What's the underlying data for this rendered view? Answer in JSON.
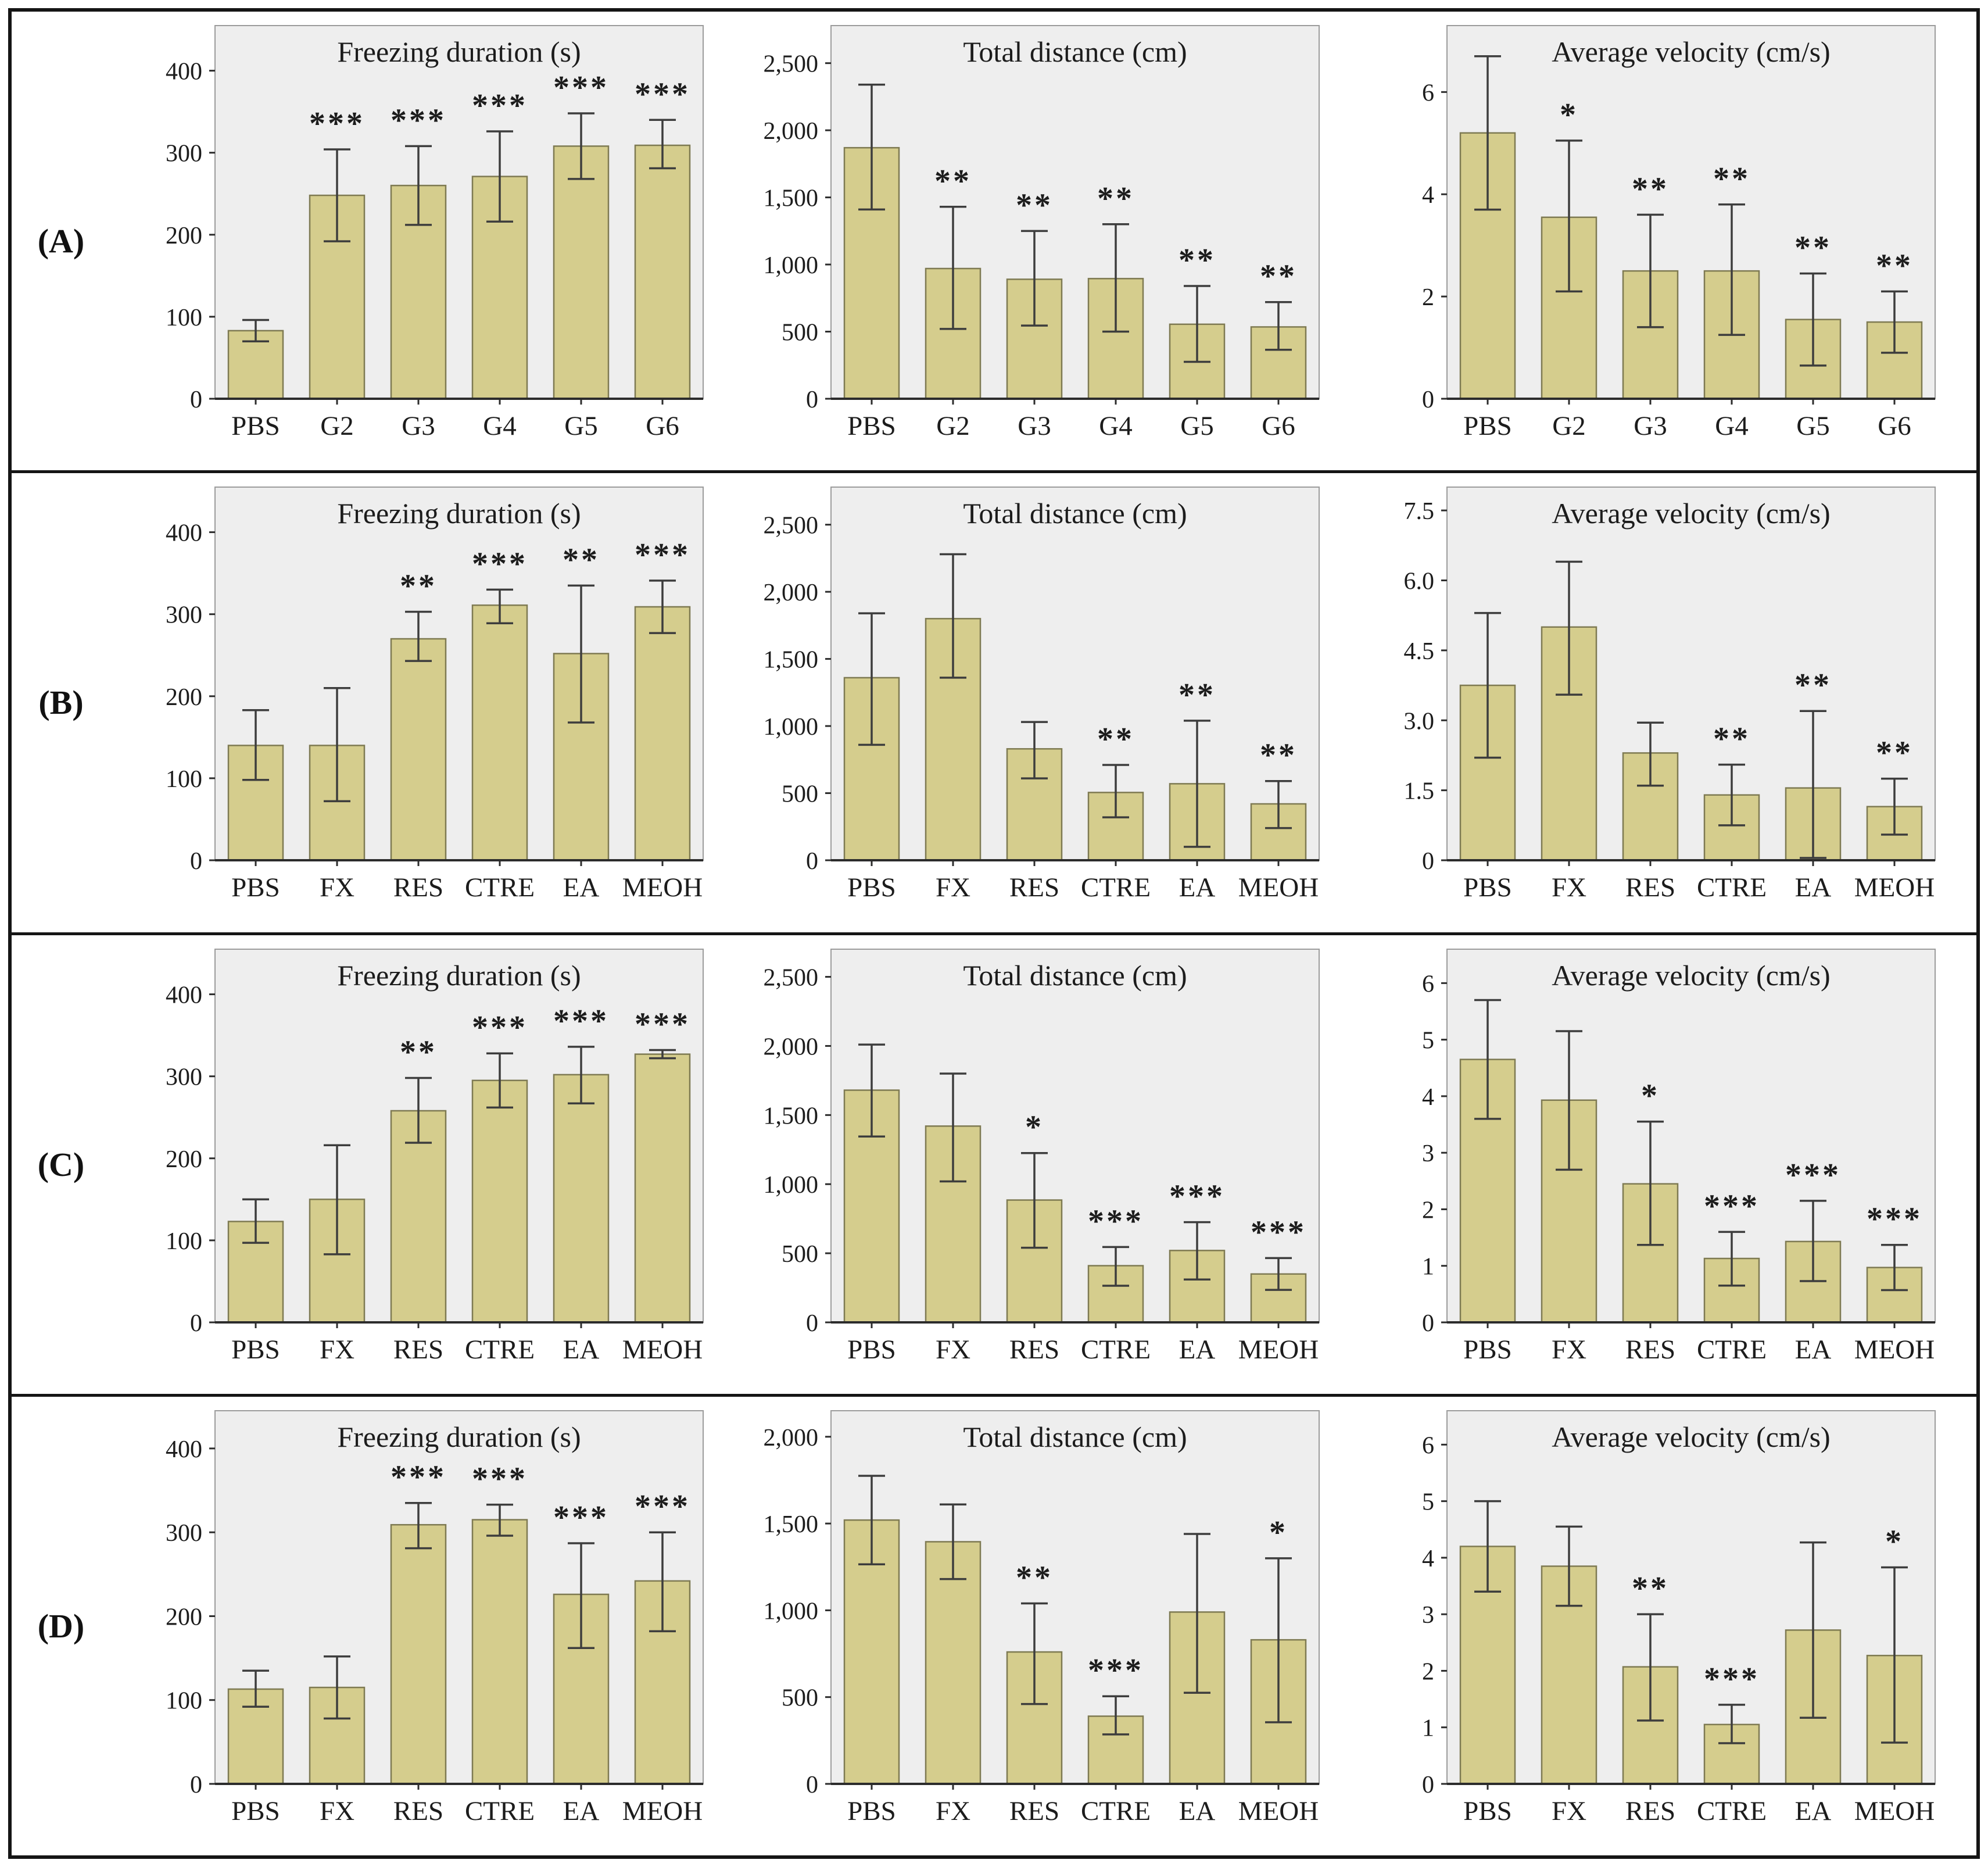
{
  "styles": {
    "bar_fill": "#d5cd8d",
    "bar_stroke": "#7e7a52",
    "plot_bg": "#eeeeee",
    "plot_border": "#9c9c9c",
    "axis_color": "#2c2c2c",
    "error_color": "#3d3d3d",
    "text_color": "#1c1c1c",
    "frame_color": "#151515"
  },
  "chart_data": {
    "type": "bar",
    "legend": "none",
    "grid": "off",
    "error_bars": true,
    "significance_marks": [
      "*",
      "**",
      "***"
    ],
    "panels": [
      {
        "label": "(A)",
        "charts": [
          {
            "title": "Freezing duration (s)",
            "ylabel": "",
            "ylim": [
              0,
              455
            ],
            "yticks": [
              {
                "v": 0,
                "t": "0"
              },
              {
                "v": 100,
                "t": "100"
              },
              {
                "v": 200,
                "t": "200"
              },
              {
                "v": 300,
                "t": "300"
              },
              {
                "v": 400,
                "t": "400"
              }
            ],
            "categories": [
              "PBS",
              "G2",
              "G3",
              "G4",
              "G5",
              "G6"
            ],
            "values": [
              83,
              248,
              260,
              271,
              308,
              309
            ],
            "err_low": [
              70,
              192,
              212,
              216,
              268,
              281
            ],
            "err_high": [
              96,
              304,
              308,
              326,
              348,
              340
            ],
            "sig": [
              "",
              "***",
              "***",
              "***",
              "***",
              "***"
            ]
          },
          {
            "title": "Total distance (cm)",
            "ylabel": "",
            "ylim": [
              0,
              2780
            ],
            "yticks": [
              {
                "v": 0,
                "t": "0"
              },
              {
                "v": 500,
                "t": "500"
              },
              {
                "v": 1000,
                "t": "1,000"
              },
              {
                "v": 1500,
                "t": "1,500"
              },
              {
                "v": 2000,
                "t": "2,000"
              },
              {
                "v": 2500,
                "t": "2,500"
              }
            ],
            "categories": [
              "PBS",
              "G2",
              "G3",
              "G4",
              "G5",
              "G6"
            ],
            "values": [
              1870,
              970,
              890,
              895,
              555,
              535
            ],
            "err_low": [
              1410,
              520,
              545,
              500,
              275,
              365
            ],
            "err_high": [
              2340,
              1430,
              1250,
              1300,
              840,
              720
            ],
            "sig": [
              "",
              "**",
              "**",
              "**",
              "**",
              "**"
            ]
          },
          {
            "title": "Average velocity (cm/s)",
            "ylabel": "",
            "ylim": [
              0,
              7.3
            ],
            "yticks": [
              {
                "v": 0,
                "t": "0"
              },
              {
                "v": 2,
                "t": "2"
              },
              {
                "v": 4,
                "t": "4"
              },
              {
                "v": 6,
                "t": "6"
              }
            ],
            "categories": [
              "PBS",
              "G2",
              "G3",
              "G4",
              "G5",
              "G6"
            ],
            "values": [
              5.2,
              3.55,
              2.5,
              2.5,
              1.55,
              1.5
            ],
            "err_low": [
              3.7,
              2.1,
              1.4,
              1.25,
              0.65,
              0.9
            ],
            "err_high": [
              6.7,
              5.05,
              3.6,
              3.8,
              2.45,
              2.1
            ],
            "sig": [
              "",
              "*",
              "**",
              "**",
              "**",
              "**"
            ]
          }
        ]
      },
      {
        "label": "(B)",
        "charts": [
          {
            "title": "Freezing duration (s)",
            "ylabel": "",
            "ylim": [
              0,
              455
            ],
            "yticks": [
              {
                "v": 0,
                "t": "0"
              },
              {
                "v": 100,
                "t": "100"
              },
              {
                "v": 200,
                "t": "200"
              },
              {
                "v": 300,
                "t": "300"
              },
              {
                "v": 400,
                "t": "400"
              }
            ],
            "categories": [
              "PBS",
              "FX",
              "RES",
              "CTRE",
              "EA",
              "MEOH"
            ],
            "values": [
              140,
              140,
              270,
              311,
              252,
              309
            ],
            "err_low": [
              98,
              72,
              243,
              289,
              168,
              277
            ],
            "err_high": [
              183,
              210,
              303,
              330,
              335,
              341
            ],
            "sig": [
              "",
              "",
              "**",
              "***",
              "**",
              "***"
            ]
          },
          {
            "title": "Total distance (cm)",
            "ylabel": "",
            "ylim": [
              0,
              2780
            ],
            "yticks": [
              {
                "v": 0,
                "t": "0"
              },
              {
                "v": 500,
                "t": "500"
              },
              {
                "v": 1000,
                "t": "1,000"
              },
              {
                "v": 1500,
                "t": "1,500"
              },
              {
                "v": 2000,
                "t": "2,000"
              },
              {
                "v": 2500,
                "t": "2,500"
              }
            ],
            "categories": [
              "PBS",
              "FX",
              "RES",
              "CTRE",
              "EA",
              "MEOH"
            ],
            "values": [
              1360,
              1800,
              830,
              505,
              570,
              420
            ],
            "err_low": [
              860,
              1360,
              610,
              320,
              100,
              240
            ],
            "err_high": [
              1840,
              2280,
              1030,
              710,
              1040,
              590
            ],
            "sig": [
              "",
              "",
              "",
              "**",
              "**",
              "**"
            ]
          },
          {
            "title": "Average velocity (cm/s)",
            "ylabel": "",
            "ylim": [
              0,
              8.0
            ],
            "yticks": [
              {
                "v": 0,
                "t": "0"
              },
              {
                "v": 1.5,
                "t": "1.5"
              },
              {
                "v": 3,
                "t": "3.0"
              },
              {
                "v": 4.5,
                "t": "4.5"
              },
              {
                "v": 6,
                "t": "6.0"
              },
              {
                "v": 7.5,
                "t": "7.5"
              }
            ],
            "categories": [
              "PBS",
              "FX",
              "RES",
              "CTRE",
              "EA",
              "MEOH"
            ],
            "values": [
              3.75,
              5.0,
              2.3,
              1.4,
              1.55,
              1.15
            ],
            "err_low": [
              2.2,
              3.55,
              1.6,
              0.75,
              0.05,
              0.55
            ],
            "err_high": [
              5.3,
              6.4,
              2.95,
              2.05,
              3.2,
              1.75
            ],
            "sig": [
              "",
              "",
              "",
              "**",
              "**",
              "**"
            ]
          }
        ]
      },
      {
        "label": "(C)",
        "charts": [
          {
            "title": "Freezing duration (s)",
            "ylabel": "",
            "ylim": [
              0,
              455
            ],
            "yticks": [
              {
                "v": 0,
                "t": "0"
              },
              {
                "v": 100,
                "t": "100"
              },
              {
                "v": 200,
                "t": "200"
              },
              {
                "v": 300,
                "t": "300"
              },
              {
                "v": 400,
                "t": "400"
              }
            ],
            "categories": [
              "PBS",
              "FX",
              "RES",
              "CTRE",
              "EA",
              "MEOH"
            ],
            "values": [
              123,
              150,
              258,
              295,
              302,
              327
            ],
            "err_low": [
              97,
              83,
              219,
              262,
              267,
              322
            ],
            "err_high": [
              150,
              216,
              298,
              328,
              336,
              332
            ],
            "sig": [
              "",
              "",
              "**",
              "***",
              "***",
              "***"
            ]
          },
          {
            "title": "Total distance (cm)",
            "ylabel": "",
            "ylim": [
              0,
              2700
            ],
            "yticks": [
              {
                "v": 0,
                "t": "0"
              },
              {
                "v": 500,
                "t": "500"
              },
              {
                "v": 1000,
                "t": "1,000"
              },
              {
                "v": 1500,
                "t": "1,500"
              },
              {
                "v": 2000,
                "t": "2,000"
              },
              {
                "v": 2500,
                "t": "2,500"
              }
            ],
            "categories": [
              "PBS",
              "FX",
              "RES",
              "CTRE",
              "EA",
              "MEOH"
            ],
            "values": [
              1680,
              1420,
              885,
              410,
              520,
              350
            ],
            "err_low": [
              1345,
              1020,
              540,
              265,
              310,
              235
            ],
            "err_high": [
              2010,
              1800,
              1225,
              545,
              725,
              465
            ],
            "sig": [
              "",
              "",
              "*",
              "***",
              "***",
              "***"
            ]
          },
          {
            "title": "Average velocity (cm/s)",
            "ylabel": "",
            "ylim": [
              0,
              6.6
            ],
            "yticks": [
              {
                "v": 0,
                "t": "0"
              },
              {
                "v": 1,
                "t": "1"
              },
              {
                "v": 2,
                "t": "2"
              },
              {
                "v": 3,
                "t": "3"
              },
              {
                "v": 4,
                "t": "4"
              },
              {
                "v": 5,
                "t": "5"
              },
              {
                "v": 6,
                "t": "6"
              }
            ],
            "categories": [
              "PBS",
              "FX",
              "RES",
              "CTRE",
              "EA",
              "MEOH"
            ],
            "values": [
              4.65,
              3.93,
              2.45,
              1.13,
              1.43,
              0.97
            ],
            "err_low": [
              3.6,
              2.7,
              1.37,
              0.65,
              0.73,
              0.57
            ],
            "err_high": [
              5.7,
              5.15,
              3.55,
              1.6,
              2.15,
              1.37
            ],
            "sig": [
              "",
              "",
              "*",
              "***",
              "***",
              "***"
            ]
          }
        ]
      },
      {
        "label": "(D)",
        "charts": [
          {
            "title": "Freezing duration (s)",
            "ylabel": "",
            "ylim": [
              0,
              445
            ],
            "yticks": [
              {
                "v": 0,
                "t": "0"
              },
              {
                "v": 100,
                "t": "100"
              },
              {
                "v": 200,
                "t": "200"
              },
              {
                "v": 300,
                "t": "300"
              },
              {
                "v": 400,
                "t": "400"
              }
            ],
            "categories": [
              "PBS",
              "FX",
              "RES",
              "CTRE",
              "EA",
              "MEOH"
            ],
            "values": [
              113,
              115,
              309,
              315,
              226,
              242
            ],
            "err_low": [
              92,
              78,
              281,
              296,
              162,
              182
            ],
            "err_high": [
              135,
              152,
              335,
              333,
              287,
              300
            ],
            "sig": [
              "",
              "",
              "***",
              "***",
              "***",
              "***"
            ]
          },
          {
            "title": "Total distance (cm)",
            "ylabel": "",
            "ylim": [
              0,
              2150
            ],
            "yticks": [
              {
                "v": 0,
                "t": "0"
              },
              {
                "v": 500,
                "t": "500"
              },
              {
                "v": 1000,
                "t": "1,000"
              },
              {
                "v": 1500,
                "t": "1,500"
              },
              {
                "v": 2000,
                "t": "2,000"
              }
            ],
            "categories": [
              "PBS",
              "FX",
              "RES",
              "CTRE",
              "EA",
              "MEOH"
            ],
            "values": [
              1520,
              1395,
              760,
              390,
              990,
              830
            ],
            "err_low": [
              1265,
              1180,
              460,
              285,
              525,
              355
            ],
            "err_high": [
              1775,
              1610,
              1040,
              505,
              1440,
              1300
            ],
            "sig": [
              "",
              "",
              "**",
              "***",
              "",
              "*"
            ]
          },
          {
            "title": "Average velocity (cm/s)",
            "ylabel": "",
            "ylim": [
              0,
              6.6
            ],
            "yticks": [
              {
                "v": 0,
                "t": "0"
              },
              {
                "v": 1,
                "t": "1"
              },
              {
                "v": 2,
                "t": "2"
              },
              {
                "v": 3,
                "t": "3"
              },
              {
                "v": 4,
                "t": "4"
              },
              {
                "v": 5,
                "t": "5"
              },
              {
                "v": 6,
                "t": "6"
              }
            ],
            "categories": [
              "PBS",
              "FX",
              "RES",
              "CTRE",
              "EA",
              "MEOH"
            ],
            "values": [
              4.2,
              3.85,
              2.07,
              1.05,
              2.72,
              2.27
            ],
            "err_low": [
              3.4,
              3.15,
              1.12,
              0.72,
              1.17,
              0.73
            ],
            "err_high": [
              5.0,
              4.55,
              3.0,
              1.4,
              4.27,
              3.83
            ],
            "sig": [
              "",
              "",
              "**",
              "***",
              "",
              "*"
            ]
          }
        ]
      }
    ]
  }
}
